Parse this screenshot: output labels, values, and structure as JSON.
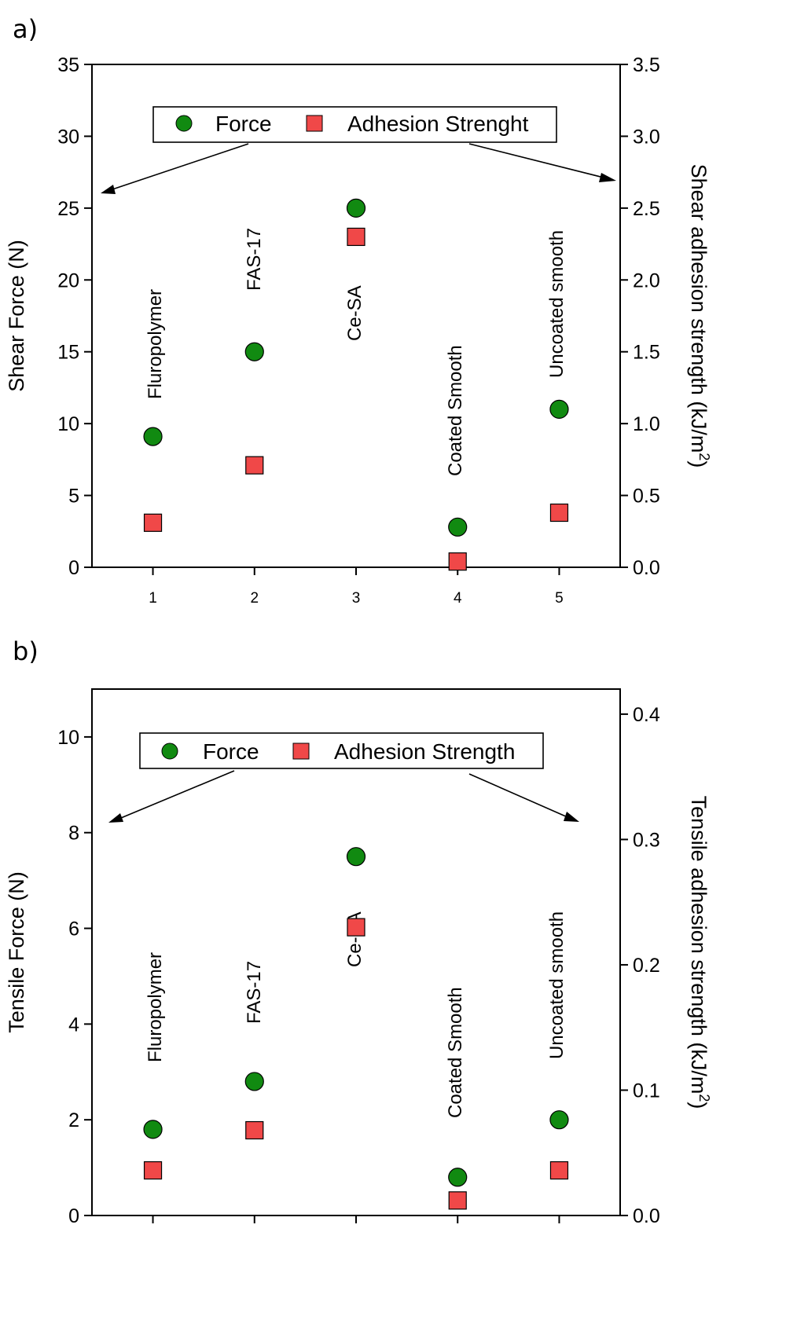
{
  "chart_data": [
    {
      "panel_label": "a)",
      "type": "scatter",
      "x_ticks": [
        "1",
        "2",
        "3",
        "4",
        "5"
      ],
      "y_left": {
        "label": "Shear Force (N)",
        "lim": [
          0,
          35
        ],
        "ticks": [
          0,
          5,
          10,
          15,
          20,
          25,
          30,
          35
        ]
      },
      "y_right": {
        "label": "Shear adhesion strength (kJ/m2)",
        "label_main": "Shear adhesion strength (kJ/m",
        "label_sup": "2",
        "label_end": ")",
        "lim": [
          0,
          3.5
        ],
        "ticks": [
          "0.0",
          "0.5",
          "1.0",
          "1.5",
          "2.0",
          "2.5",
          "3.0",
          "3.5"
        ]
      },
      "legend": {
        "placement": "top-center",
        "force_label": "Force",
        "adhesion_label": "Adhesion Strenght"
      },
      "categories": [
        "Fluropolymer",
        "FAS-17",
        "Ce-SA",
        "Coated Smooth",
        "Uncoated smooth"
      ],
      "x": [
        1,
        2,
        3,
        4,
        5
      ],
      "series": [
        {
          "name": "Force",
          "axis": "left",
          "marker": "circle",
          "color": "#118a11",
          "values": [
            9.1,
            15.0,
            25.0,
            2.8,
            11.0
          ]
        },
        {
          "name": "Adhesion Strenght",
          "axis": "right",
          "marker": "square",
          "color": "#f04848",
          "values": [
            0.31,
            0.71,
            2.3,
            0.04,
            0.38
          ]
        }
      ],
      "grid": false
    },
    {
      "panel_label": "b)",
      "type": "scatter",
      "x_ticks": [],
      "y_left": {
        "label": "Tensile Force (N)",
        "lim": [
          0,
          11
        ],
        "ticks": [
          0,
          2,
          4,
          6,
          8,
          10
        ]
      },
      "y_right": {
        "label": "Tensile adhesion strength (kJ/m2)",
        "label_main": "Tensile adhesion strength (kJ/m",
        "label_sup": "2",
        "label_end": ")",
        "lim": [
          0,
          0.42
        ],
        "ticks": [
          "0.0",
          "0.1",
          "0.2",
          "0.3",
          "0.4"
        ]
      },
      "legend": {
        "placement": "top-center",
        "force_label": "Force",
        "adhesion_label": "Adhesion Strength"
      },
      "categories": [
        "Fluropolymer",
        "FAS-17",
        "Ce-SA",
        "Coated Smooth",
        "Uncoated smooth"
      ],
      "x": [
        1,
        2,
        3,
        4,
        5
      ],
      "series": [
        {
          "name": "Force",
          "axis": "left",
          "marker": "circle",
          "color": "#118a11",
          "values": [
            1.8,
            2.8,
            7.5,
            0.8,
            2.0
          ]
        },
        {
          "name": "Adhesion Strength",
          "axis": "right",
          "marker": "square",
          "color": "#f04848",
          "values": [
            0.036,
            0.068,
            0.23,
            0.012,
            0.036
          ]
        }
      ],
      "grid": false
    }
  ]
}
